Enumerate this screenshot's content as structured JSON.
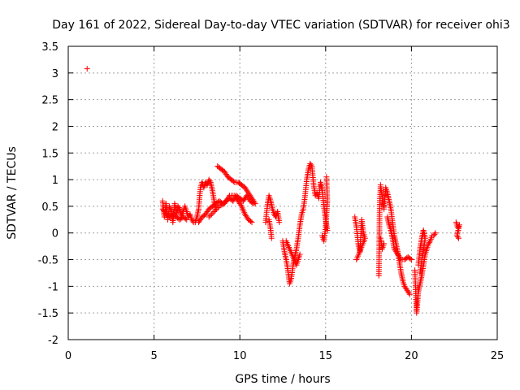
{
  "chart_data": {
    "type": "scatter",
    "title": "Day 161 of 2022, Sidereal Day-to-day VTEC variation (SDTVAR) for receiver ohi3",
    "xlabel": "GPS time / hours",
    "ylabel": "SDTVAR / TECUs",
    "xlim": [
      0,
      25
    ],
    "ylim": [
      -2,
      3.5
    ],
    "grid": true,
    "marker": "+",
    "color": "#ff0000",
    "x_ticks": [
      0,
      5,
      10,
      15,
      20,
      25
    ],
    "x_tick_labels": [
      "0",
      "5",
      "10",
      "15",
      "20",
      "25"
    ],
    "y_ticks": [
      -2,
      -1.5,
      -1,
      -0.5,
      0,
      0.5,
      1,
      1.5,
      2,
      2.5,
      3,
      3.5
    ],
    "y_tick_labels": [
      "-2",
      "-1.5",
      "-1",
      "-0.5",
      "0",
      "0.5",
      "1",
      "1.5",
      "2",
      "2.5",
      "3",
      "3.5"
    ],
    "series": [
      {
        "name": "ohi3",
        "segments": [
          [
            [
              1.1,
              3.08
            ]
          ],
          [
            [
              5.5,
              0.6
            ],
            [
              5.6,
              0.3
            ],
            [
              5.7,
              0.55
            ],
            [
              5.8,
              0.25
            ],
            [
              5.9,
              0.5
            ],
            [
              6.0,
              0.4
            ],
            [
              6.1,
              0.2
            ],
            [
              6.2,
              0.55
            ],
            [
              6.3,
              0.35
            ],
            [
              6.4,
              0.5
            ],
            [
              6.5,
              0.45
            ],
            [
              6.6,
              0.3
            ],
            [
              6.7,
              0.4
            ],
            [
              6.8,
              0.5
            ],
            [
              6.9,
              0.4
            ],
            [
              7.0,
              0.3
            ],
            [
              7.1,
              0.35
            ],
            [
              7.2,
              0.25
            ],
            [
              7.3,
              0.2
            ],
            [
              7.4,
              0.2
            ],
            [
              7.5,
              0.3
            ],
            [
              7.6,
              0.45
            ],
            [
              7.7,
              0.85
            ],
            [
              7.8,
              0.95
            ],
            [
              7.9,
              0.85
            ],
            [
              8.0,
              0.95
            ],
            [
              8.1,
              0.9
            ],
            [
              8.2,
              1.0
            ],
            [
              8.3,
              0.95
            ],
            [
              8.4,
              0.8
            ],
            [
              8.5,
              0.6
            ],
            [
              8.6,
              0.45
            ]
          ],
          [
            [
              5.5,
              0.45
            ],
            [
              5.7,
              0.35
            ],
            [
              5.9,
              0.3
            ],
            [
              6.1,
              0.35
            ],
            [
              6.3,
              0.3
            ],
            [
              6.5,
              0.25
            ],
            [
              6.7,
              0.3
            ],
            [
              6.9,
              0.25
            ]
          ],
          [
            [
              7.6,
              0.2
            ],
            [
              7.8,
              0.3
            ],
            [
              8.0,
              0.35
            ],
            [
              8.2,
              0.45
            ],
            [
              8.4,
              0.5
            ],
            [
              8.6,
              0.55
            ],
            [
              8.8,
              0.6
            ],
            [
              9.0,
              0.55
            ],
            [
              9.2,
              0.6
            ],
            [
              9.4,
              0.65
            ],
            [
              9.6,
              0.6
            ],
            [
              9.8,
              0.7
            ],
            [
              10.0,
              0.65
            ],
            [
              10.2,
              0.6
            ],
            [
              10.4,
              0.7
            ],
            [
              10.6,
              0.6
            ],
            [
              10.8,
              0.55
            ]
          ],
          [
            [
              8.7,
              1.25
            ],
            [
              8.9,
              1.2
            ],
            [
              9.1,
              1.15
            ],
            [
              9.3,
              1.05
            ],
            [
              9.5,
              1.0
            ],
            [
              9.7,
              0.95
            ],
            [
              9.9,
              0.95
            ],
            [
              10.1,
              0.9
            ],
            [
              10.3,
              0.85
            ],
            [
              10.5,
              0.75
            ],
            [
              10.7,
              0.65
            ],
            [
              10.9,
              0.55
            ]
          ],
          [
            [
              8.2,
              0.3
            ],
            [
              8.5,
              0.4
            ],
            [
              8.8,
              0.5
            ],
            [
              9.1,
              0.55
            ],
            [
              9.4,
              0.7
            ],
            [
              9.7,
              0.7
            ],
            [
              9.9,
              0.6
            ],
            [
              10.1,
              0.5
            ],
            [
              10.3,
              0.35
            ],
            [
              10.5,
              0.25
            ],
            [
              10.7,
              0.2
            ]
          ],
          [
            [
              11.5,
              0.2
            ],
            [
              11.6,
              0.5
            ],
            [
              11.7,
              0.7
            ],
            [
              11.8,
              0.6
            ],
            [
              11.9,
              0.45
            ],
            [
              12.0,
              0.35
            ],
            [
              12.1,
              0.3
            ],
            [
              12.2,
              0.4
            ],
            [
              12.3,
              0.2
            ]
          ],
          [
            [
              11.7,
              0.25
            ],
            [
              11.8,
              0.05
            ],
            [
              11.85,
              -0.1
            ]
          ],
          [
            [
              12.5,
              -0.15
            ],
            [
              12.6,
              -0.35
            ],
            [
              12.7,
              -0.5
            ],
            [
              12.8,
              -0.7
            ],
            [
              12.9,
              -0.95
            ],
            [
              13.0,
              -0.85
            ],
            [
              13.1,
              -0.6
            ],
            [
              13.2,
              -0.45
            ],
            [
              13.3,
              -0.3
            ],
            [
              13.4,
              -0.1
            ],
            [
              13.5,
              0.15
            ],
            [
              13.6,
              0.35
            ],
            [
              13.7,
              0.45
            ],
            [
              13.8,
              0.7
            ],
            [
              13.9,
              1.0
            ],
            [
              14.0,
              1.2
            ],
            [
              14.1,
              1.3
            ],
            [
              14.2,
              1.25
            ],
            [
              14.3,
              0.9
            ],
            [
              14.4,
              0.7
            ],
            [
              14.5,
              0.75
            ],
            [
              14.6,
              0.65
            ],
            [
              14.7,
              0.95
            ],
            [
              14.8,
              0.8
            ],
            [
              14.9,
              0.5
            ],
            [
              15.0,
              0.25
            ],
            [
              15.1,
              0.05
            ]
          ],
          [
            [
              12.7,
              -0.15
            ],
            [
              12.9,
              -0.3
            ],
            [
              13.1,
              -0.45
            ],
            [
              13.3,
              -0.6
            ],
            [
              13.5,
              -0.4
            ]
          ],
          [
            [
              14.8,
              -0.05
            ],
            [
              14.9,
              -0.15
            ],
            [
              15.0,
              0.1
            ],
            [
              15.1,
              0.6
            ],
            [
              15.05,
              1.05
            ]
          ],
          [
            [
              16.7,
              0.3
            ],
            [
              16.8,
              0.1
            ],
            [
              16.9,
              -0.2
            ],
            [
              17.0,
              -0.35
            ],
            [
              17.1,
              0.25
            ],
            [
              17.2,
              0.0
            ],
            [
              17.3,
              -0.1
            ],
            [
              16.8,
              -0.5
            ]
          ],
          [
            [
              18.1,
              -0.8
            ],
            [
              18.15,
              0.5
            ],
            [
              18.2,
              0.9
            ],
            [
              18.3,
              0.65
            ],
            [
              18.4,
              0.45
            ],
            [
              18.5,
              0.85
            ],
            [
              18.6,
              0.75
            ],
            [
              18.7,
              0.6
            ],
            [
              18.8,
              0.45
            ],
            [
              18.9,
              0.2
            ],
            [
              19.0,
              -0.05
            ],
            [
              19.1,
              -0.2
            ],
            [
              19.2,
              -0.35
            ],
            [
              19.3,
              -0.55
            ],
            [
              19.4,
              -0.75
            ],
            [
              19.5,
              -0.9
            ],
            [
              19.6,
              -1.0
            ],
            [
              19.7,
              -1.05
            ],
            [
              19.8,
              -1.1
            ],
            [
              19.9,
              -1.15
            ]
          ],
          [
            [
              18.6,
              0.3
            ],
            [
              18.7,
              0.15
            ],
            [
              18.8,
              0.05
            ],
            [
              18.9,
              -0.1
            ],
            [
              19.0,
              -0.3
            ],
            [
              19.2,
              -0.4
            ],
            [
              19.4,
              -0.5
            ],
            [
              19.6,
              -0.5
            ],
            [
              19.8,
              -0.45
            ],
            [
              20.0,
              -0.5
            ]
          ],
          [
            [
              18.2,
              -0.1
            ],
            [
              18.3,
              -0.3
            ],
            [
              18.4,
              -0.2
            ]
          ],
          [
            [
              20.2,
              -0.7
            ],
            [
              20.3,
              -1.5
            ],
            [
              20.35,
              -1.3
            ],
            [
              20.4,
              -1.1
            ],
            [
              20.5,
              -0.95
            ],
            [
              20.6,
              -0.8
            ],
            [
              20.7,
              -0.6
            ],
            [
              20.8,
              -0.4
            ],
            [
              20.9,
              -0.3
            ],
            [
              21.0,
              -0.2
            ],
            [
              21.1,
              -0.15
            ],
            [
              21.2,
              -0.05
            ],
            [
              21.3,
              -0.05
            ],
            [
              21.4,
              0.0
            ]
          ],
          [
            [
              20.4,
              -0.6
            ],
            [
              20.5,
              -0.3
            ],
            [
              20.6,
              -0.1
            ],
            [
              20.7,
              0.05
            ],
            [
              20.8,
              -0.1
            ],
            [
              20.5,
              -0.75
            ]
          ],
          [
            [
              22.6,
              0.2
            ],
            [
              22.7,
              0.1
            ],
            [
              22.8,
              0.15
            ],
            [
              22.65,
              -0.05
            ],
            [
              22.75,
              -0.1
            ]
          ]
        ]
      }
    ]
  }
}
